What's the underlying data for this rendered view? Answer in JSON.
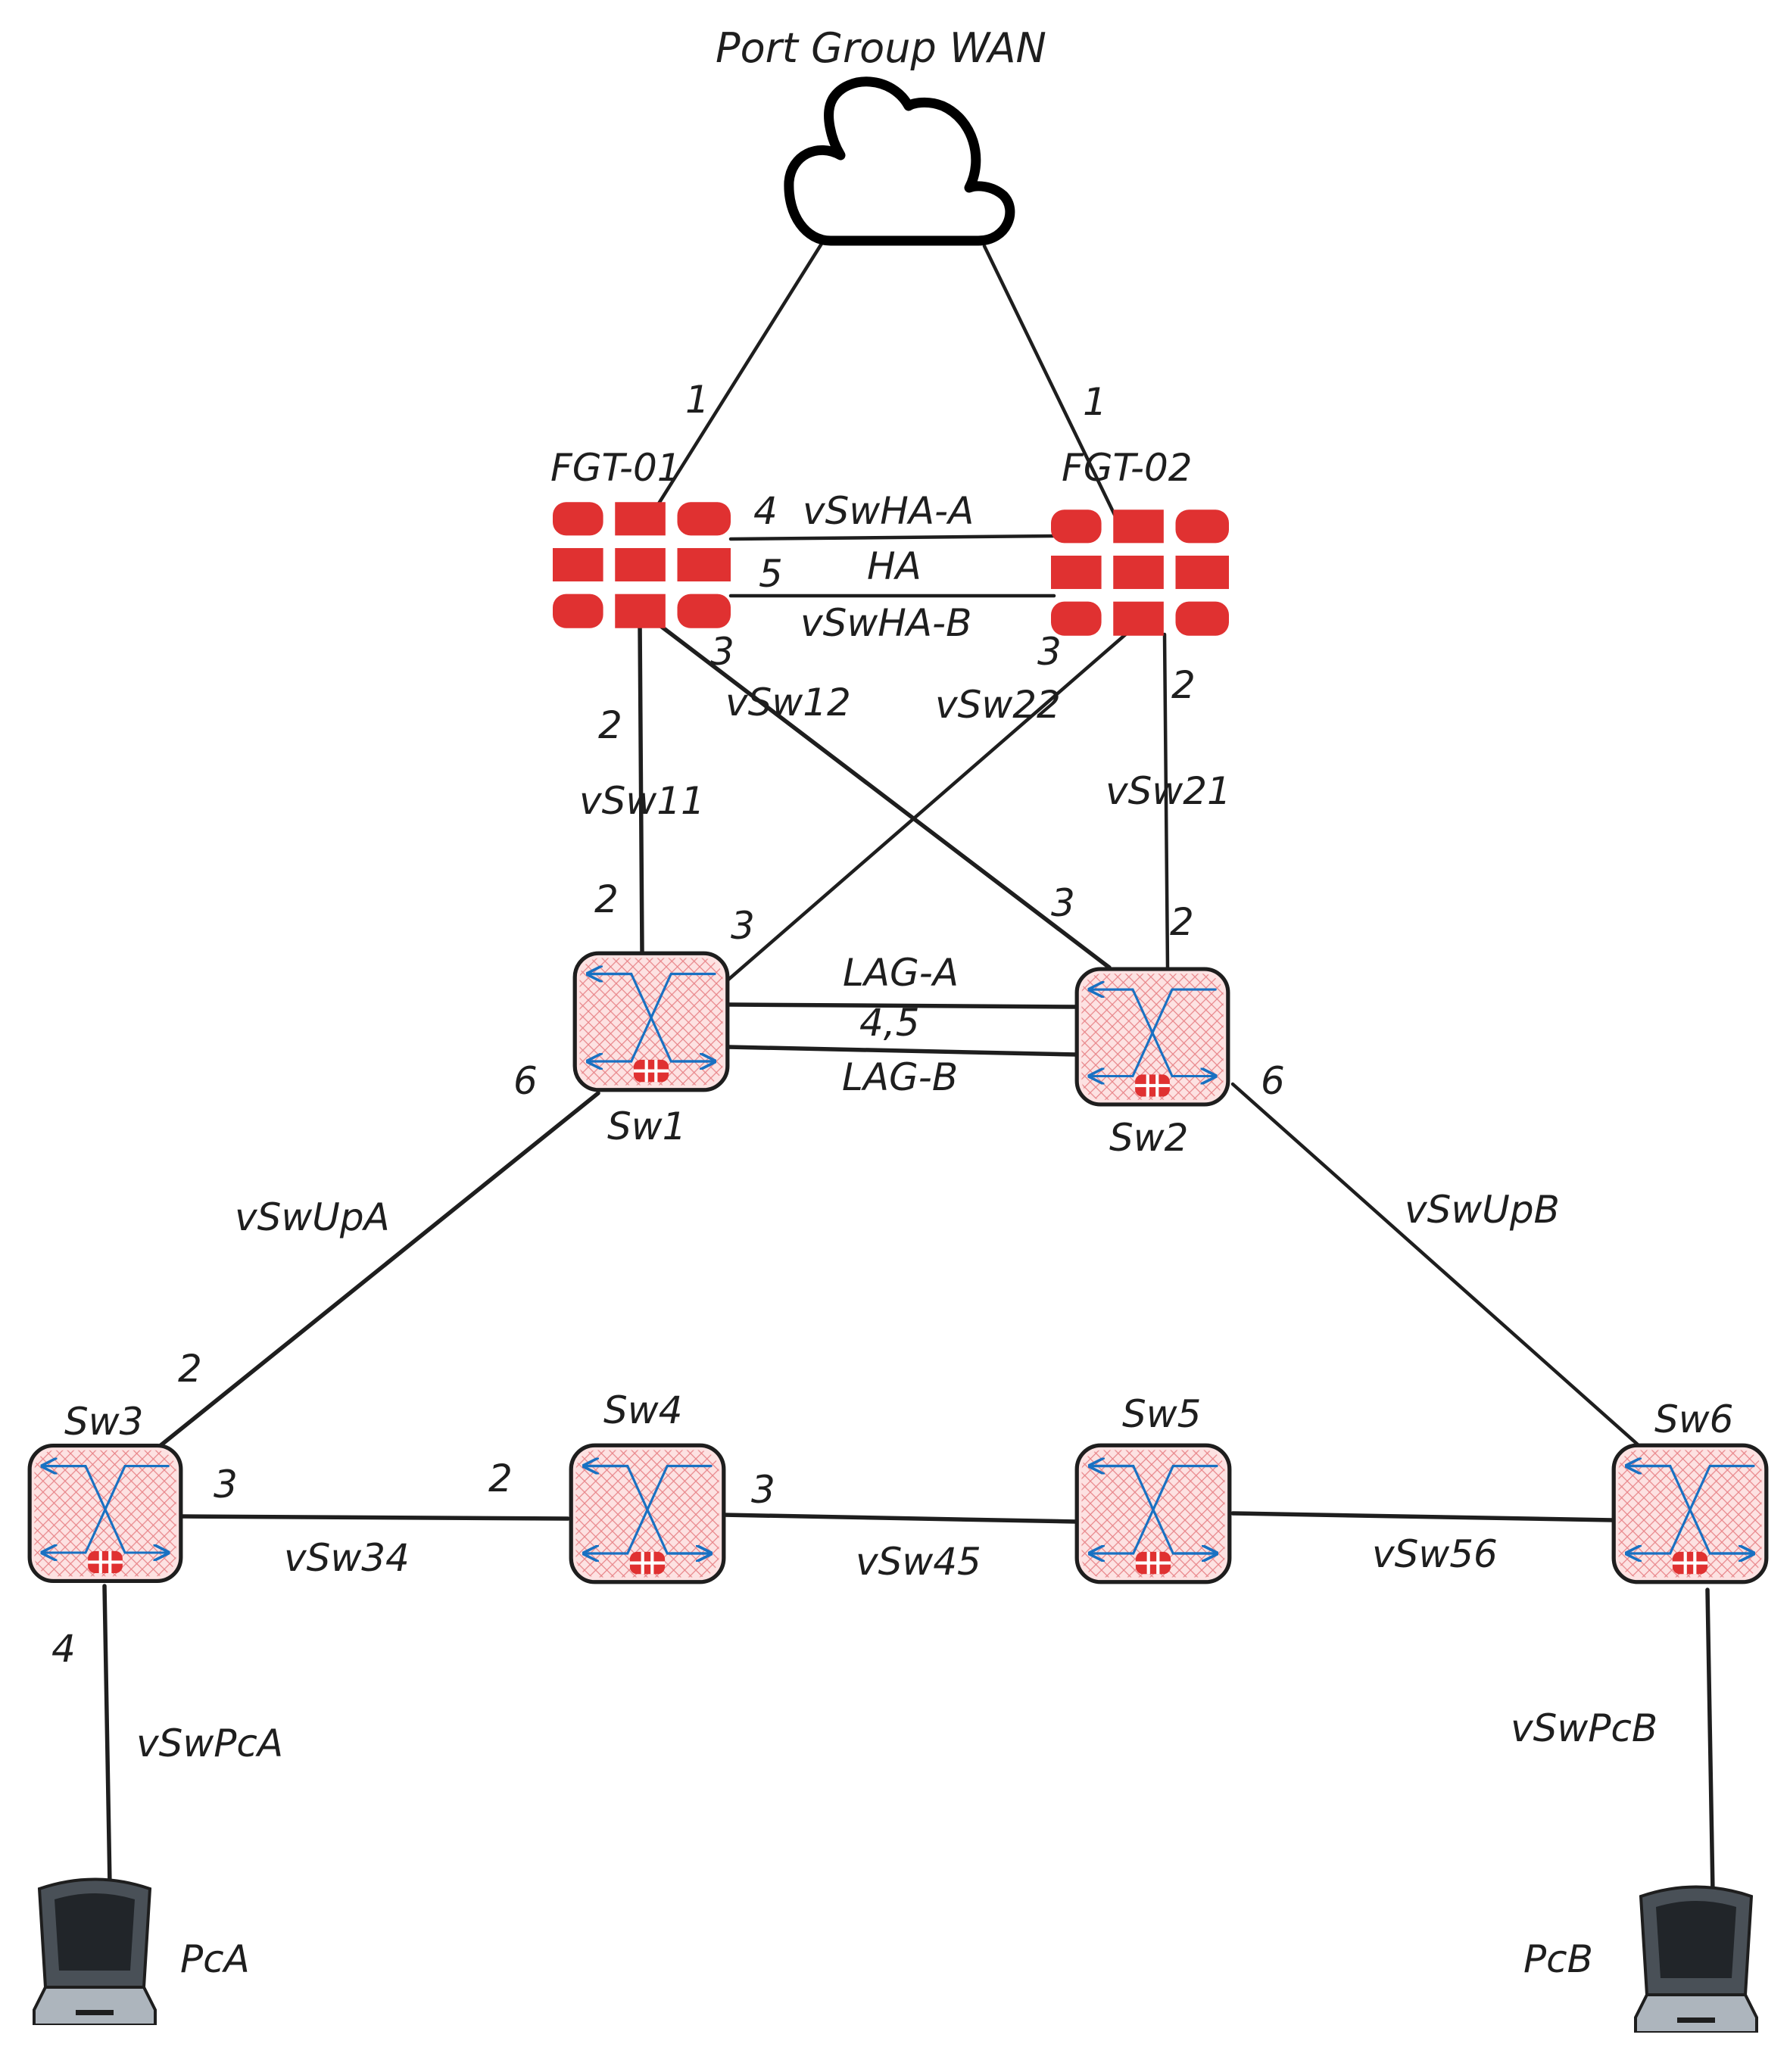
{
  "title": "Port Group WAN",
  "nodes": {
    "fgt01": "FGT-01",
    "fgt02": "FGT-02",
    "sw1": "Sw1",
    "sw2": "Sw2",
    "sw3": "Sw3",
    "sw4": "Sw4",
    "sw5": "Sw5",
    "sw6": "Sw6",
    "pca": "PcA",
    "pcb": "PcB"
  },
  "links": {
    "vswha_a": "vSwHA-A",
    "ha": "HA",
    "vswha_b": "vSwHA-B",
    "vsw11": "vSw11",
    "vsw12": "vSw12",
    "vsw22": "vSw22",
    "vsw21": "vSw21",
    "lag_a": "LAG-A",
    "lag_ports": "4,5",
    "lag_b": "LAG-B",
    "vswupa": "vSwUpA",
    "vswupb": "vSwUpB",
    "vsw34": "vSw34",
    "vsw45": "vSw45",
    "vsw56": "vSw56",
    "vswpca": "vSwPcA",
    "vswpcb": "vSwPcB"
  },
  "ports": {
    "fgt01_wan": "1",
    "fgt02_wan": "1",
    "fgt01_ha_a": "4",
    "fgt01_ha_b": "5",
    "fgt01_p3": "3",
    "fgt02_p3": "3",
    "fgt01_p2": "2",
    "fgt02_p2": "2",
    "sw1_p2": "2",
    "sw1_p3": "3",
    "sw2_p3": "3",
    "sw2_p2": "2",
    "sw1_p6": "6",
    "sw2_p6": "6",
    "sw3_p2": "2",
    "sw3_p3": "3",
    "sw4_p2": "2",
    "sw4_p3": "3",
    "sw3_p4": "4"
  },
  "colors": {
    "fortinet_red": "#e03131",
    "switch_fill": "#ffc9c9",
    "arrow_blue": "#1971c2",
    "monitor_dark": "#343a40",
    "ink": "#1e1e1e"
  }
}
